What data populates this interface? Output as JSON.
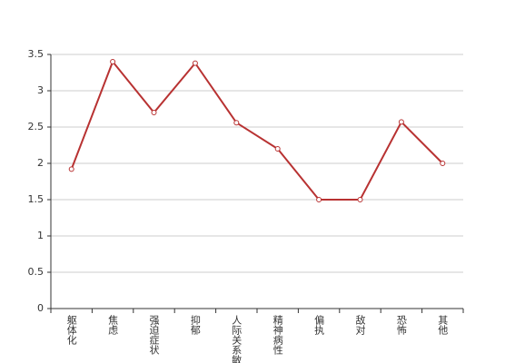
{
  "chart_data": {
    "type": "line",
    "categories": [
      "躯体化",
      "焦虑",
      "强迫症状",
      "抑郁",
      "人际关系敏感",
      "精神病性",
      "偏执",
      "敌对",
      "恐怖",
      "其他"
    ],
    "values": [
      1.92,
      3.4,
      2.7,
      3.38,
      2.56,
      2.2,
      1.5,
      1.5,
      2.57,
      2.0
    ],
    "color": "#b83232",
    "ylim": [
      0,
      3.5
    ],
    "yticks": [
      0,
      0.5,
      1,
      1.5,
      2,
      2.5,
      3,
      3.5
    ],
    "grid": true
  }
}
